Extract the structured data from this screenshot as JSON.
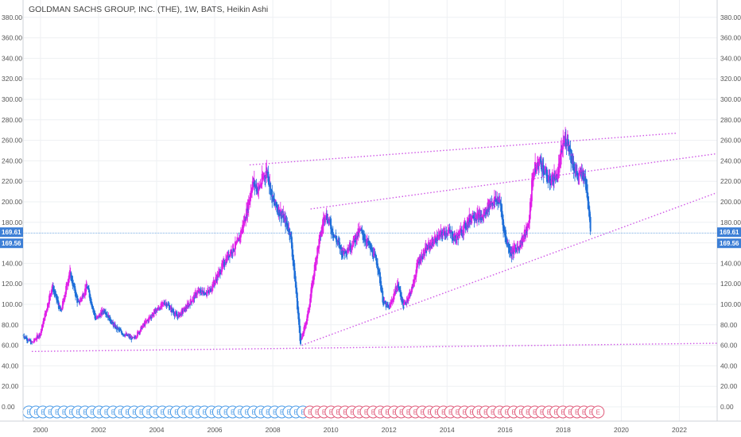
{
  "chart_data": {
    "type": "candlestick",
    "title": "GOLDMAN SACHS GROUP, INC. (THE), 1W, BATS, Heikin Ashi",
    "y_ticks": [
      "0.00",
      "20.00",
      "40.00",
      "60.00",
      "80.00",
      "100.00",
      "120.00",
      "140.00",
      "160.00",
      "180.00",
      "200.00",
      "220.00",
      "240.00",
      "260.00",
      "280.00",
      "300.00",
      "320.00",
      "340.00",
      "360.00",
      "380.00"
    ],
    "x_ticks": [
      "2000",
      "2002",
      "2004",
      "2006",
      "2008",
      "2010",
      "2012",
      "2014",
      "2016",
      "2018",
      "2020",
      "2022"
    ],
    "ylim": [
      0,
      385
    ],
    "xlim": [
      1999.4,
      2023.3
    ],
    "price_labels": {
      "current": "169.61",
      "secondary": "169.56"
    },
    "price_line_value": 169.6,
    "colors": {
      "up": "#e020e8",
      "down": "#1e6fd9",
      "trendline": "#d058e6",
      "price_line": "#4a90d9",
      "badge": "#3d7fd6",
      "grid": "#eef0f3",
      "event_blue": "#4a9be8",
      "event_pink": "#e05a7a"
    },
    "key_points": [
      [
        1999.4,
        70
      ],
      [
        1999.7,
        62
      ],
      [
        2000.0,
        72
      ],
      [
        2000.4,
        118
      ],
      [
        2000.7,
        92
      ],
      [
        2001.0,
        132
      ],
      [
        2001.3,
        100
      ],
      [
        2001.6,
        118
      ],
      [
        2001.9,
        85
      ],
      [
        2002.2,
        95
      ],
      [
        2002.5,
        80
      ],
      [
        2002.8,
        72
      ],
      [
        2003.2,
        66
      ],
      [
        2003.5,
        78
      ],
      [
        2003.9,
        92
      ],
      [
        2004.3,
        102
      ],
      [
        2004.7,
        88
      ],
      [
        2005.0,
        96
      ],
      [
        2005.4,
        112
      ],
      [
        2005.8,
        112
      ],
      [
        2006.1,
        128
      ],
      [
        2006.5,
        150
      ],
      [
        2006.8,
        160
      ],
      [
        2007.1,
        190
      ],
      [
        2007.3,
        220
      ],
      [
        2007.5,
        212
      ],
      [
        2007.8,
        232
      ],
      [
        2008.0,
        200
      ],
      [
        2008.3,
        188
      ],
      [
        2008.6,
        170
      ],
      [
        2008.8,
        112
      ],
      [
        2008.95,
        62
      ],
      [
        2009.2,
        90
      ],
      [
        2009.5,
        148
      ],
      [
        2009.8,
        190
      ],
      [
        2010.1,
        168
      ],
      [
        2010.4,
        150
      ],
      [
        2010.7,
        158
      ],
      [
        2011.0,
        172
      ],
      [
        2011.3,
        158
      ],
      [
        2011.6,
        140
      ],
      [
        2011.8,
        102
      ],
      [
        2012.0,
        96
      ],
      [
        2012.3,
        120
      ],
      [
        2012.5,
        98
      ],
      [
        2012.8,
        116
      ],
      [
        2013.0,
        142
      ],
      [
        2013.4,
        158
      ],
      [
        2013.7,
        166
      ],
      [
        2014.0,
        172
      ],
      [
        2014.3,
        164
      ],
      [
        2014.6,
        176
      ],
      [
        2014.9,
        188
      ],
      [
        2015.2,
        184
      ],
      [
        2015.5,
        200
      ],
      [
        2015.8,
        202
      ],
      [
        2016.0,
        165
      ],
      [
        2016.2,
        150
      ],
      [
        2016.5,
        158
      ],
      [
        2016.8,
        176
      ],
      [
        2016.95,
        228
      ],
      [
        2017.2,
        240
      ],
      [
        2017.5,
        220
      ],
      [
        2017.8,
        226
      ],
      [
        2018.0,
        258
      ],
      [
        2018.15,
        262
      ],
      [
        2018.3,
        240
      ],
      [
        2018.5,
        224
      ],
      [
        2018.7,
        228
      ],
      [
        2018.85,
        204
      ],
      [
        2018.95,
        170
      ]
    ],
    "trend_lines": [
      {
        "from": [
          1999.7,
          54
        ],
        "to": [
          2023.3,
          62
        ]
      },
      {
        "from": [
          2009.0,
          60
        ],
        "to": [
          2023.3,
          209
        ]
      },
      {
        "from": [
          2007.2,
          236
        ],
        "to": [
          2021.9,
          267
        ]
      },
      {
        "from": [
          2009.3,
          193
        ],
        "to": [
          2023.3,
          247
        ]
      }
    ],
    "events": {
      "blue_count": 40,
      "pink_count": 42,
      "label": "E",
      "y_value": -5
    },
    "grid": true
  }
}
